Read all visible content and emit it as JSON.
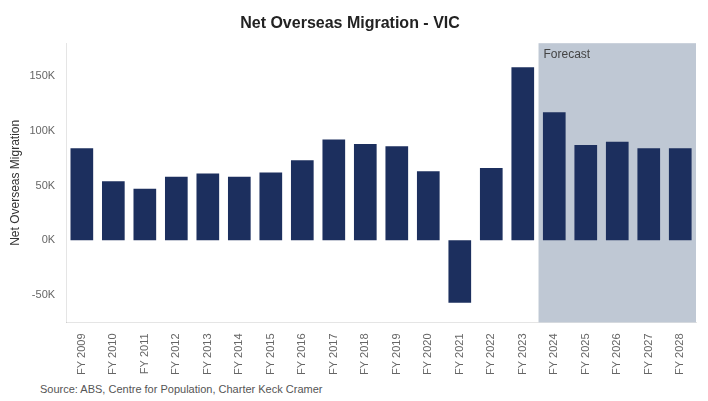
{
  "chart_data": {
    "type": "bar",
    "title": "Net Overseas Migration - VIC",
    "ylabel": "Net Overseas Migration",
    "categories": [
      "FY 2009",
      "FY 2010",
      "FY 2011",
      "FY 2012",
      "FY 2013",
      "FY 2014",
      "FY 2015",
      "FY 2016",
      "FY 2017",
      "FY 2018",
      "FY 2019",
      "FY 2020",
      "FY 2021",
      "FY 2022",
      "FY 2023",
      "FY 2024",
      "FY 2025",
      "FY 2026",
      "FY 2027",
      "FY 2028"
    ],
    "values": [
      84000,
      54000,
      47000,
      58000,
      61000,
      58000,
      62000,
      73000,
      92000,
      88000,
      86000,
      63000,
      -57000,
      66000,
      158000,
      117000,
      87000,
      90000,
      84000,
      84000
    ],
    "color": "#1c2f5e",
    "ylim": [
      -75000,
      180000
    ],
    "yticks": [
      {
        "value": -50000,
        "label": "-50K"
      },
      {
        "value": 0,
        "label": "0K"
      },
      {
        "value": 50000,
        "label": "50K"
      },
      {
        "value": 100000,
        "label": "100K"
      },
      {
        "value": 150000,
        "label": "150K"
      }
    ],
    "grid": false,
    "annotations": [
      {
        "text": "Forecast",
        "x": "FY 2024",
        "color": "#bfc8d4"
      },
      {
        "text": "Source: ABS, Centre for Population, Charter Keck Cramer"
      }
    ]
  }
}
